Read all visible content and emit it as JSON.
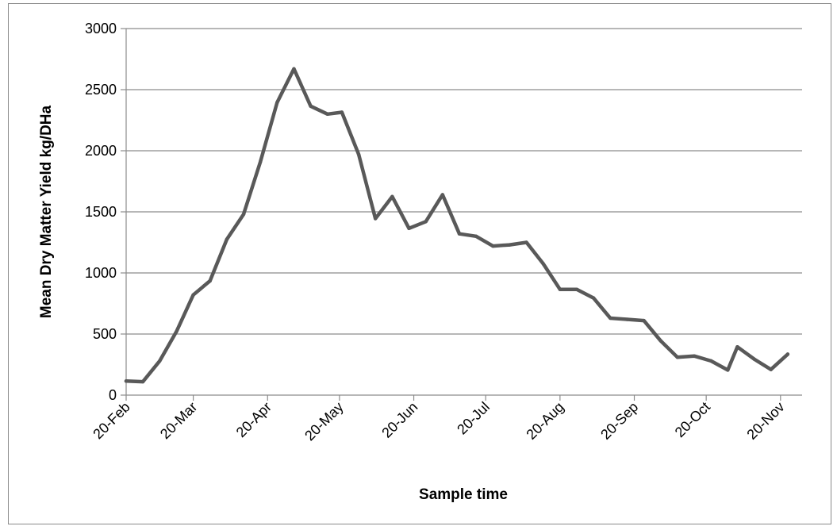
{
  "chart_data": {
    "type": "line",
    "title": "",
    "xlabel": "Sample time",
    "ylabel": "Mean Dry Matter  Yield kg/DHa",
    "ylim": [
      0,
      3000
    ],
    "yticks": [
      0,
      500,
      1000,
      1500,
      2000,
      2500,
      3000
    ],
    "xlim": [
      "20-Feb",
      "29-Nov"
    ],
    "xticks": [
      "20-Feb",
      "20-Mar",
      "20-Apr",
      "20-May",
      "20-Jun",
      "20-Jul",
      "20-Aug",
      "20-Sep",
      "20-Oct",
      "20-Nov"
    ],
    "grid": "horizontal",
    "legend": "none",
    "line_color": "#595959",
    "series": [
      {
        "values": [
          {
            "x": "20-Feb",
            "y": 115
          },
          {
            "x": "27-Feb",
            "y": 110
          },
          {
            "x": "6-Mar",
            "y": 280
          },
          {
            "x": "13-Mar",
            "y": 520
          },
          {
            "x": "20-Mar",
            "y": 820
          },
          {
            "x": "27-Mar",
            "y": 935
          },
          {
            "x": "3-Apr",
            "y": 1275
          },
          {
            "x": "10-Apr",
            "y": 1480
          },
          {
            "x": "17-Apr",
            "y": 1910
          },
          {
            "x": "24-Apr",
            "y": 2395
          },
          {
            "x": "1-May",
            "y": 2670
          },
          {
            "x": "8-May",
            "y": 2365
          },
          {
            "x": "15-May",
            "y": 2300
          },
          {
            "x": "21-May",
            "y": 2315
          },
          {
            "x": "28-May",
            "y": 1970
          },
          {
            "x": "4-Jun",
            "y": 1445
          },
          {
            "x": "11-Jun",
            "y": 1625
          },
          {
            "x": "18-Jun",
            "y": 1365
          },
          {
            "x": "25-Jun",
            "y": 1420
          },
          {
            "x": "2-Jul",
            "y": 1640
          },
          {
            "x": "9-Jul",
            "y": 1320
          },
          {
            "x": "16-Jul",
            "y": 1300
          },
          {
            "x": "23-Jul",
            "y": 1220
          },
          {
            "x": "30-Jul",
            "y": 1230
          },
          {
            "x": "6-Aug",
            "y": 1250
          },
          {
            "x": "13-Aug",
            "y": 1075
          },
          {
            "x": "20-Aug",
            "y": 865
          },
          {
            "x": "27-Aug",
            "y": 865
          },
          {
            "x": "3-Sep",
            "y": 795
          },
          {
            "x": "10-Sep",
            "y": 630
          },
          {
            "x": "17-Sep",
            "y": 620
          },
          {
            "x": "24-Sep",
            "y": 610
          },
          {
            "x": "1-Oct",
            "y": 445
          },
          {
            "x": "8-Oct",
            "y": 310
          },
          {
            "x": "15-Oct",
            "y": 320
          },
          {
            "x": "22-Oct",
            "y": 280
          },
          {
            "x": "29-Oct",
            "y": 205
          },
          {
            "x": "2-Nov",
            "y": 395
          },
          {
            "x": "9-Nov",
            "y": 295
          },
          {
            "x": "16-Nov",
            "y": 210
          },
          {
            "x": "23-Nov",
            "y": 335
          }
        ]
      }
    ]
  }
}
